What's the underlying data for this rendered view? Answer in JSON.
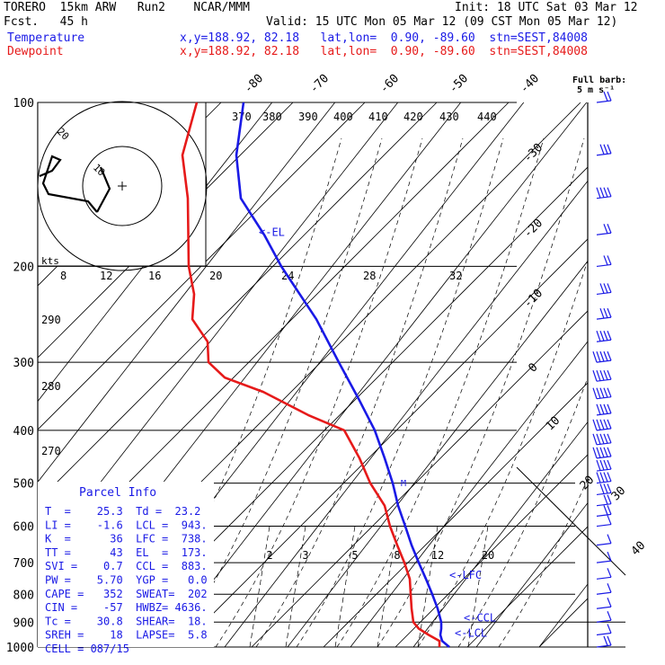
{
  "header": {
    "model": "TORERO  15km ARW   Run2    NCAR/MMM",
    "init": "Init: 18 UTC Sat 03 Mar 12",
    "fcst": "Fcst.   45 h",
    "valid": "Valid: 15 UTC Mon 05 Mar 12 (09 CST Mon 05 Mar 12)",
    "temp_label": "Temperature",
    "dew_label": "Dewpoint",
    "temp_loc": "x,y=188.92, 82.18   lat,lon=  0.90, -89.60  stn=SEST,84008",
    "dew_loc": "x,y=188.92, 82.18   lat,lon=  0.90, -89.60  stn=SEST,84008"
  },
  "barb_legend": {
    "line1": "Full barb:",
    "line2": "5 m s⁻¹"
  },
  "parcel_info": {
    "title": "Parcel Info",
    "rows": [
      "T  =    25.3  Td =  23.2",
      "LI =    -1.6  LCL =  943.",
      "K  =      36  LFC =  738.",
      "TT =      43  EL  =  173.",
      "SVI =    0.7  CCL =  883.",
      "PW =    5.70  YGP =   0.0",
      "CAPE =   352  SWEAT=  202",
      "CIN =    -57  HWBZ= 4636.",
      "Tc =    30.8  SHEAR=  18.",
      "SREH =    18  LAPSE=  5.8",
      "CELL = 087/15"
    ]
  },
  "hodograph": {
    "units": "kts",
    "ring_labels": [
      "10",
      "20"
    ]
  },
  "chart_data": {
    "type": "line",
    "title": "",
    "y_axis": {
      "quantity": "pressure (hPa)",
      "scale": "log",
      "ylim": [
        1000,
        100
      ],
      "ticks": [
        1000,
        900,
        800,
        700,
        600,
        500,
        400,
        300,
        200,
        100
      ]
    },
    "isotherm_labels": [
      "-80",
      "-70",
      "-60",
      "-50",
      "-40",
      "-30",
      "-20",
      "-10",
      "0",
      "10",
      "20",
      "30",
      "40"
    ],
    "theta_labels_top": [
      "370",
      "380",
      "390",
      "400",
      "410",
      "420",
      "430",
      "440"
    ],
    "theta_labels_mid": [
      "8",
      "12",
      "16",
      "20",
      "24",
      "28",
      "32"
    ],
    "theta_labels_left": [
      "290",
      "280",
      "270"
    ],
    "mixing_ratio_labels": [
      "2",
      "3",
      "5",
      "8",
      "12",
      "20"
    ],
    "levels": [
      {
        "name": "LCL",
        "label": "<-LCL",
        "p": 943
      },
      {
        "name": "CCL",
        "label": "<-CCL",
        "p": 883
      },
      {
        "name": "LFC",
        "label": "<-LFC",
        "p": 738
      },
      {
        "name": "EL",
        "label": "<-EL",
        "p": 173
      }
    ],
    "series": [
      {
        "name": "Temperature",
        "color": "#1a1ae6",
        "p": [
          1000,
          975,
          950,
          925,
          900,
          850,
          800,
          750,
          700,
          650,
          600,
          550,
          500,
          450,
          400,
          350,
          300,
          250,
          200,
          175,
          150,
          125,
          100
        ],
        "x": [
          500,
          492,
          490,
          491,
          491,
          487,
          481,
          474,
          466,
          458,
          451,
          443,
          437,
          428,
          417,
          399,
          377,
          352,
          313,
          294,
          268,
          263,
          271
        ]
      },
      {
        "name": "Dewpoint",
        "color": "#e61a1a",
        "p": [
          1000,
          975,
          950,
          925,
          900,
          850,
          800,
          750,
          700,
          650,
          600,
          550,
          500,
          450,
          400,
          375,
          340,
          320,
          300,
          275,
          250,
          225,
          200,
          150,
          125,
          100
        ],
        "x": [
          489,
          489,
          477,
          466,
          460,
          458,
          457,
          456,
          450,
          442,
          434,
          428,
          412,
          400,
          383,
          343,
          293,
          250,
          232,
          231,
          214,
          216,
          210,
          209,
          203,
          219
        ]
      }
    ],
    "wind_barbs": {
      "note": "barbs along right axis, staff pointing from wind direction",
      "p": [
        100,
        125,
        150,
        175,
        200,
        225,
        250,
        275,
        300,
        325,
        350,
        375,
        400,
        425,
        450,
        475,
        500,
        525,
        550,
        575,
        600,
        650,
        700,
        750,
        800,
        850,
        900,
        950,
        1000
      ],
      "speed_ms": [
        10,
        15,
        20,
        10,
        10,
        15,
        15,
        20,
        25,
        25,
        25,
        20,
        25,
        25,
        25,
        20,
        20,
        15,
        10,
        10,
        5,
        5,
        5,
        5,
        5,
        5,
        5,
        5,
        10
      ]
    }
  }
}
